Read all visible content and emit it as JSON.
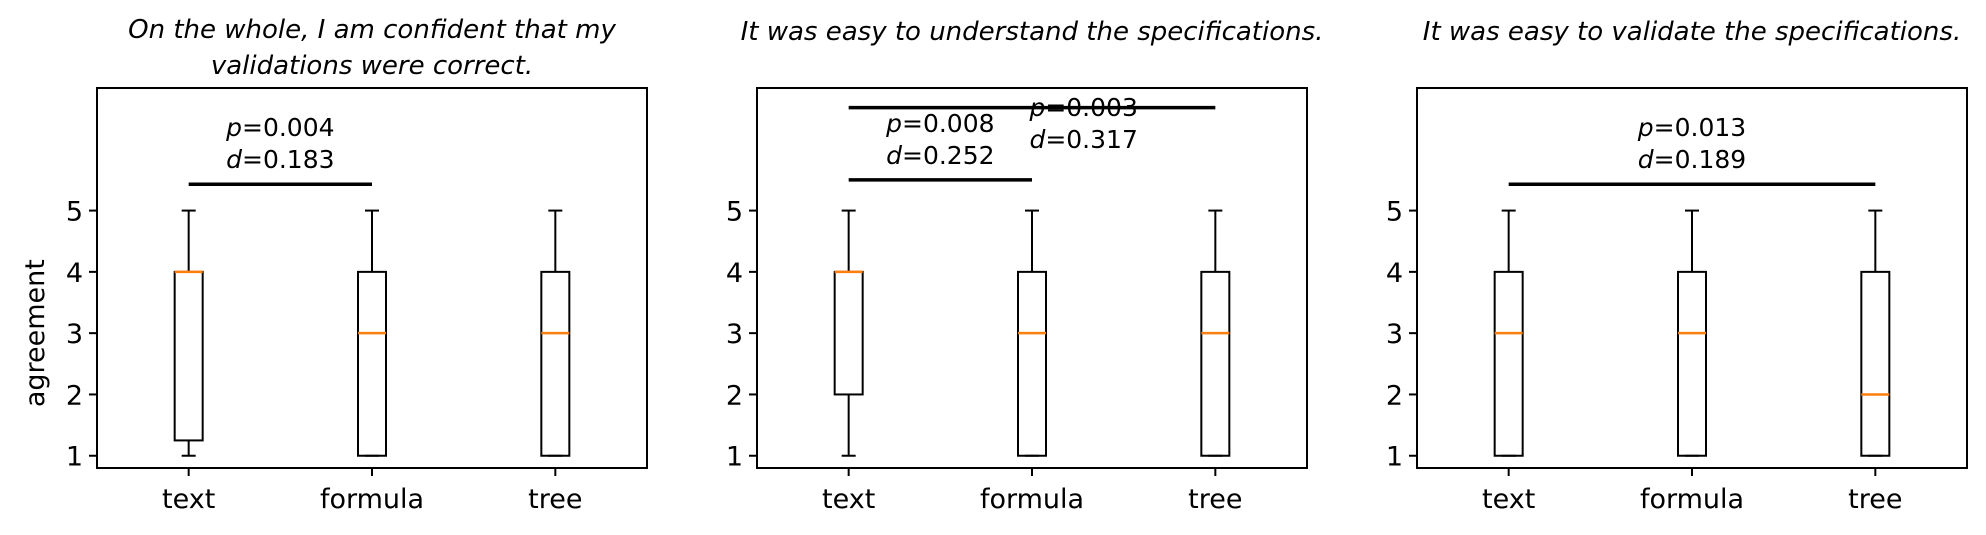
{
  "chart_data": [
    {
      "type": "boxplot",
      "title_lines": [
        "On the whole, I am confident that my",
        "validations were correct."
      ],
      "ylabel": "agreement",
      "ylim": [
        0.8,
        7.0
      ],
      "yticks": [
        1,
        2,
        3,
        4,
        5
      ],
      "categories": [
        "text",
        "formula",
        "tree"
      ],
      "boxes": [
        {
          "whislo": 1,
          "q1": 1.25,
          "med": 4,
          "q3": 4,
          "whishi": 5
        },
        {
          "whislo": 1,
          "q1": 1,
          "med": 3,
          "q3": 4,
          "whishi": 5
        },
        {
          "whislo": 1,
          "q1": 1,
          "med": 3,
          "q3": 4,
          "whishi": 5
        }
      ],
      "annotations": [
        {
          "from": 0,
          "to": 1,
          "level": 5.43,
          "p": "0.004",
          "d": "0.183"
        }
      ]
    },
    {
      "type": "boxplot",
      "title_lines": [
        "It was easy to understand the specifications."
      ],
      "ylabel": "",
      "ylim": [
        0.8,
        7.0
      ],
      "yticks": [
        1,
        2,
        3,
        4,
        5
      ],
      "categories": [
        "text",
        "formula",
        "tree"
      ],
      "boxes": [
        {
          "whislo": 1,
          "q1": 2,
          "med": 4,
          "q3": 4,
          "whishi": 5
        },
        {
          "whislo": 1,
          "q1": 1,
          "med": 3,
          "q3": 4,
          "whishi": 5
        },
        {
          "whislo": 1,
          "q1": 1,
          "med": 3,
          "q3": 4,
          "whishi": 5
        }
      ],
      "annotations": [
        {
          "from": 0,
          "to": 1,
          "level": 5.5,
          "p": "0.008",
          "d": "0.252"
        },
        {
          "from": 0,
          "to": 2,
          "level": 6.68,
          "p": "0.003",
          "d": "0.317"
        }
      ]
    },
    {
      "type": "boxplot",
      "title_lines": [
        "It was easy to validate the specifications."
      ],
      "ylabel": "",
      "ylim": [
        0.8,
        7.0
      ],
      "yticks": [
        1,
        2,
        3,
        4,
        5
      ],
      "categories": [
        "text",
        "formula",
        "tree"
      ],
      "boxes": [
        {
          "whislo": 1,
          "q1": 1,
          "med": 3,
          "q3": 4,
          "whishi": 5
        },
        {
          "whislo": 1,
          "q1": 1,
          "med": 3,
          "q3": 4,
          "whishi": 5
        },
        {
          "whislo": 1,
          "q1": 1,
          "med": 2,
          "q3": 4,
          "whishi": 5
        }
      ],
      "annotations": [
        {
          "from": 0,
          "to": 2,
          "level": 5.43,
          "p": "0.013",
          "d": "0.189"
        }
      ]
    }
  ],
  "colors": {
    "box": "#000000",
    "median": "#ff7f0e"
  }
}
